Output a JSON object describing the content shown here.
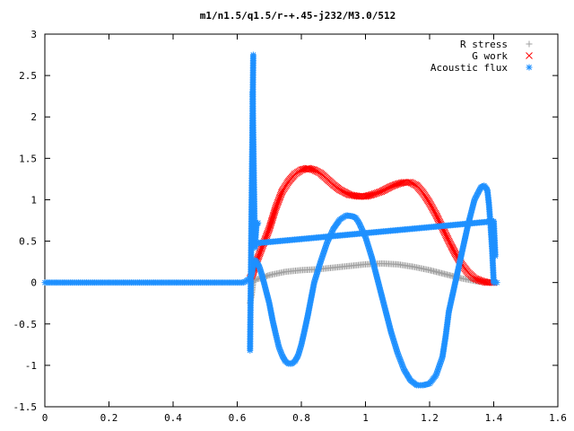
{
  "chart_data": {
    "type": "scatter",
    "title": "m1/n1.5/q1.5/r-+.45-j232/M3.0/512",
    "xlabel": "",
    "ylabel": "",
    "xlim": [
      0,
      1.6
    ],
    "ylim": [
      -1.5,
      3
    ],
    "grid": false,
    "legend_position": "top-right",
    "x_ticks": [
      "0",
      "0.2",
      "0.4",
      "0.6",
      "0.8",
      "1",
      "1.2",
      "1.4",
      "1.6"
    ],
    "y_ticks": [
      "-1.5",
      "-1",
      "-0.5",
      "0",
      "0.5",
      "1",
      "1.5",
      "2",
      "2.5",
      "3"
    ],
    "series": [
      {
        "name": "R stress",
        "marker": "plus",
        "color": "#a0a0a0",
        "x": [
          0.64,
          0.645,
          0.65,
          0.66,
          0.68,
          0.7,
          0.75,
          0.8,
          0.85,
          0.9,
          0.95,
          1.0,
          1.05,
          1.1,
          1.15,
          1.2,
          1.25,
          1.3,
          1.34,
          1.36,
          1.38,
          1.4
        ],
        "y": [
          -0.25,
          -0.15,
          0.02,
          0.04,
          0.06,
          0.09,
          0.13,
          0.15,
          0.16,
          0.18,
          0.2,
          0.22,
          0.23,
          0.22,
          0.19,
          0.15,
          0.1,
          0.05,
          0.02,
          0.01,
          0.005,
          0.0
        ]
      },
      {
        "name": "G work",
        "marker": "cross",
        "color": "#ff0000",
        "x": [
          0.64,
          0.65,
          0.66,
          0.68,
          0.7,
          0.72,
          0.74,
          0.76,
          0.78,
          0.8,
          0.82,
          0.84,
          0.86,
          0.88,
          0.9,
          0.92,
          0.95,
          0.98,
          1.0,
          1.02,
          1.05,
          1.08,
          1.1,
          1.12,
          1.14,
          1.16,
          1.18,
          1.2,
          1.22,
          1.24,
          1.26,
          1.28,
          1.3,
          1.32,
          1.34,
          1.36,
          1.38,
          1.4
        ],
        "y": [
          0.05,
          0.12,
          0.25,
          0.45,
          0.65,
          0.9,
          1.1,
          1.22,
          1.31,
          1.36,
          1.38,
          1.36,
          1.32,
          1.25,
          1.18,
          1.12,
          1.06,
          1.04,
          1.04,
          1.06,
          1.1,
          1.16,
          1.19,
          1.21,
          1.21,
          1.17,
          1.08,
          0.96,
          0.82,
          0.66,
          0.5,
          0.35,
          0.22,
          0.12,
          0.05,
          0.02,
          0.0,
          0.0
        ]
      },
      {
        "name": "Acoustic flux",
        "marker": "star",
        "color": "#1e90ff",
        "x": [
          0.0,
          0.02,
          0.04,
          0.06,
          0.08,
          0.1,
          0.12,
          0.14,
          0.16,
          0.18,
          0.2,
          0.22,
          0.24,
          0.26,
          0.28,
          0.3,
          0.32,
          0.34,
          0.36,
          0.38,
          0.4,
          0.42,
          0.44,
          0.46,
          0.48,
          0.5,
          0.52,
          0.54,
          0.56,
          0.58,
          0.6,
          0.62,
          0.64,
          0.645,
          0.65,
          0.655,
          0.66,
          0.665,
          0.67,
          0.68,
          0.69,
          0.7,
          0.71,
          0.72,
          0.73,
          0.74,
          0.75,
          0.76,
          0.77,
          0.78,
          0.79,
          0.8,
          0.81,
          0.82,
          0.83,
          0.84,
          0.86,
          0.88,
          0.9,
          0.92,
          0.94,
          0.96,
          0.97,
          0.98,
          1.0,
          1.02,
          1.04,
          1.06,
          1.08,
          1.1,
          1.12,
          1.14,
          1.16,
          1.18,
          1.2,
          1.22,
          1.24,
          1.25,
          1.26,
          1.28,
          1.3,
          1.32,
          1.34,
          1.36,
          1.37,
          1.38,
          1.385,
          1.39,
          1.395,
          1.4,
          1.405,
          1.41,
          0.64,
          0.65,
          0.648,
          0.655,
          0.66,
          0.665,
          0.645,
          1.4,
          1.405
        ],
        "y": [
          0,
          0,
          0,
          0,
          0,
          0,
          0,
          0,
          0,
          0,
          0,
          0,
          0,
          0,
          0,
          0,
          0,
          0,
          0,
          0,
          0,
          0,
          0,
          0,
          0,
          0,
          0,
          0,
          0,
          0,
          0,
          0,
          0.05,
          0.1,
          0.2,
          0.27,
          0.25,
          0.22,
          0.18,
          0.05,
          -0.1,
          -0.25,
          -0.45,
          -0.62,
          -0.78,
          -0.88,
          -0.95,
          -0.98,
          -0.98,
          -0.95,
          -0.88,
          -0.75,
          -0.58,
          -0.4,
          -0.2,
          0.0,
          0.25,
          0.48,
          0.65,
          0.76,
          0.81,
          0.8,
          0.78,
          0.72,
          0.55,
          0.3,
          0.0,
          -0.3,
          -0.6,
          -0.85,
          -1.05,
          -1.18,
          -1.24,
          -1.24,
          -1.22,
          -1.12,
          -0.9,
          -0.65,
          -0.35,
          0.0,
          0.35,
          0.7,
          1.0,
          1.15,
          1.17,
          1.12,
          0.95,
          0.7,
          0.4,
          0.0,
          0.0,
          0.0,
          -0.82,
          2.75,
          2.3,
          0.42,
          0.7,
          0.72,
          0.47,
          0.74,
          0.32
        ]
      }
    ]
  }
}
